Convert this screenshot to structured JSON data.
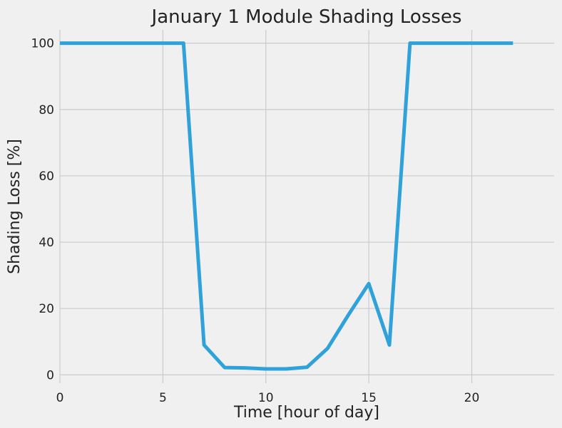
{
  "chart_data": {
    "type": "line",
    "title": "January 1 Module Shading Losses",
    "xlabel": "Time [hour of day]",
    "ylabel": "Shading Loss [%]",
    "xlim": [
      0,
      24
    ],
    "ylim": [
      -2.5,
      104
    ],
    "xticks": [
      0,
      5,
      10,
      15,
      20
    ],
    "yticks": [
      0,
      20,
      40,
      60,
      80,
      100
    ],
    "grid": true,
    "colors": {
      "background": "#f0f0f0",
      "grid": "#cbcbcb",
      "line": "#30a2da"
    },
    "series": [
      {
        "x": [
          0,
          1,
          2,
          3,
          4,
          5,
          6,
          7,
          8,
          9,
          10,
          11,
          12,
          13,
          14,
          15,
          16,
          17,
          18,
          19,
          20,
          21,
          22
        ],
        "values": [
          100,
          100,
          100,
          100,
          100,
          100,
          100,
          9,
          2.2,
          2.1,
          1.8,
          1.8,
          2.3,
          8,
          18,
          27.5,
          9,
          100,
          100,
          100,
          100,
          100,
          100
        ]
      }
    ]
  }
}
